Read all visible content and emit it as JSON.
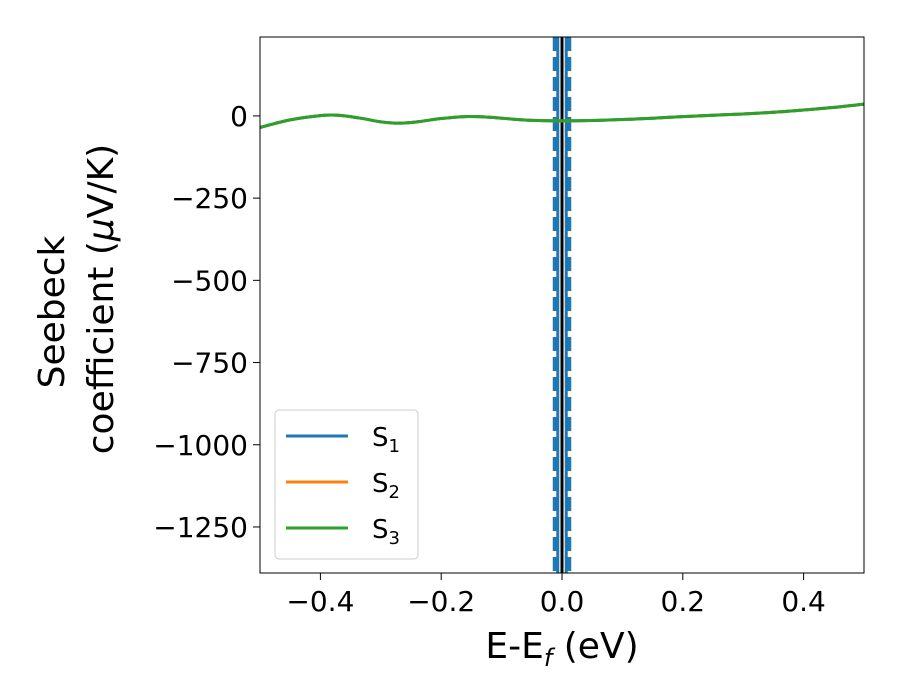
{
  "chart_data": {
    "type": "line",
    "xlabel": "E-E",
    "xlabel_sub": "f",
    "xlabel_unit": " (eV)",
    "ylabel_line1": "Seebeck",
    "ylabel_line2": "coefficient  (",
    "ylabel_mu": "μ",
    "ylabel_unit_end": "V/K)",
    "xlim": [
      -0.5,
      0.5
    ],
    "ylim": [
      -1390,
      240
    ],
    "xticks": [
      -0.4,
      -0.2,
      0.0,
      0.2,
      0.4
    ],
    "xtick_labels": [
      "−0.4",
      "−0.2",
      "0.0",
      "0.2",
      "0.4"
    ],
    "yticks": [
      0,
      -250,
      -500,
      -750,
      -1000,
      -1250
    ],
    "ytick_labels": [
      "0",
      "−250",
      "−500",
      "−750",
      "−1000",
      "−1250"
    ],
    "legend_position": "lower-left",
    "series": [
      {
        "name": "S",
        "sub": "1",
        "color": "#1f77b4",
        "x": [
          -0.5,
          -0.45,
          -0.4,
          -0.37,
          -0.33,
          -0.3,
          -0.27,
          -0.24,
          -0.2,
          -0.16,
          -0.12,
          -0.08,
          -0.04,
          0.0,
          0.05,
          0.1,
          0.15,
          0.2,
          0.25,
          0.3,
          0.35,
          0.4,
          0.45,
          0.5
        ],
        "y": [
          -35,
          -12,
          1,
          2,
          -8,
          -18,
          -22,
          -18,
          -8,
          -2,
          -4,
          -10,
          -14,
          -15,
          -14,
          -11,
          -7,
          -2,
          2,
          6,
          11,
          18,
          26,
          36
        ]
      },
      {
        "name": "S",
        "sub": "2",
        "color": "#ff7f0e",
        "x": [
          -0.5,
          -0.45,
          -0.4,
          -0.37,
          -0.33,
          -0.3,
          -0.27,
          -0.24,
          -0.2,
          -0.16,
          -0.12,
          -0.08,
          -0.04,
          0.0,
          0.05,
          0.1,
          0.15,
          0.2,
          0.25,
          0.3,
          0.35,
          0.4,
          0.45,
          0.5
        ],
        "y": [
          -35,
          -12,
          1,
          2,
          -8,
          -18,
          -22,
          -18,
          -8,
          -2,
          -4,
          -10,
          -14,
          -15,
          -14,
          -11,
          -7,
          -2,
          2,
          6,
          11,
          18,
          26,
          36
        ]
      },
      {
        "name": "S",
        "sub": "3",
        "color": "#2ca02c",
        "x": [
          -0.5,
          -0.45,
          -0.4,
          -0.37,
          -0.33,
          -0.3,
          -0.27,
          -0.24,
          -0.2,
          -0.16,
          -0.12,
          -0.08,
          -0.04,
          0.0,
          0.05,
          0.1,
          0.15,
          0.2,
          0.25,
          0.3,
          0.35,
          0.4,
          0.45,
          0.5
        ],
        "y": [
          -35,
          -12,
          1,
          2,
          -8,
          -18,
          -22,
          -18,
          -8,
          -2,
          -4,
          -10,
          -14,
          -15,
          -14,
          -11,
          -7,
          -2,
          2,
          6,
          11,
          18,
          26,
          36
        ]
      }
    ],
    "vertical_lines": [
      {
        "x": 0.0,
        "color": "#000000",
        "style": "solid"
      },
      {
        "x": -0.007,
        "color": "#1f77b4",
        "style": "solid"
      },
      {
        "x": 0.007,
        "color": "#1f77b4",
        "style": "solid"
      },
      {
        "x": -0.012,
        "color": "#1f77b4",
        "style": "dashed"
      },
      {
        "x": 0.012,
        "color": "#1f77b4",
        "style": "dashed"
      }
    ]
  }
}
